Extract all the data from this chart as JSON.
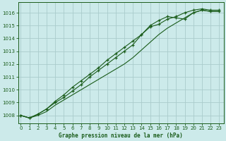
{
  "title": "Graphe pression niveau de la mer (hPa)",
  "bg_color": "#cceaea",
  "grid_color": "#aacccc",
  "line_color": "#1a5c1a",
  "x_ticks": [
    0,
    1,
    2,
    3,
    4,
    5,
    6,
    7,
    8,
    9,
    10,
    11,
    12,
    13,
    14,
    15,
    16,
    17,
    18,
    19,
    20,
    21,
    22,
    23
  ],
  "y_ticks": [
    1008,
    1009,
    1010,
    1011,
    1012,
    1013,
    1014,
    1015,
    1016
  ],
  "ylim": [
    1007.4,
    1016.8
  ],
  "xlim": [
    -0.3,
    23.5
  ],
  "series1": [
    1008.0,
    1007.8,
    1008.1,
    1008.5,
    1009.1,
    1009.6,
    1010.2,
    1010.7,
    1011.2,
    1011.7,
    1012.3,
    1012.8,
    1013.3,
    1013.8,
    1014.3,
    1014.9,
    1015.1,
    1015.5,
    1015.7,
    1016.0,
    1016.2,
    1016.3,
    1016.2,
    1016.2
  ],
  "series2": [
    1008.0,
    1007.8,
    1008.1,
    1008.5,
    1009.0,
    1009.4,
    1009.9,
    1010.4,
    1011.0,
    1011.5,
    1012.0,
    1012.5,
    1013.0,
    1013.5,
    1014.3,
    1015.0,
    1015.4,
    1015.7,
    1015.6,
    1015.5,
    1016.0,
    1016.2,
    1016.1,
    1016.1
  ],
  "series3": [
    1008.0,
    1007.8,
    1008.0,
    1008.3,
    1008.8,
    1009.2,
    1009.6,
    1010.0,
    1010.4,
    1010.8,
    1011.2,
    1011.6,
    1012.0,
    1012.5,
    1013.1,
    1013.7,
    1014.3,
    1014.8,
    1015.2,
    1015.6,
    1016.0,
    1016.2,
    1016.1,
    1016.1
  ]
}
